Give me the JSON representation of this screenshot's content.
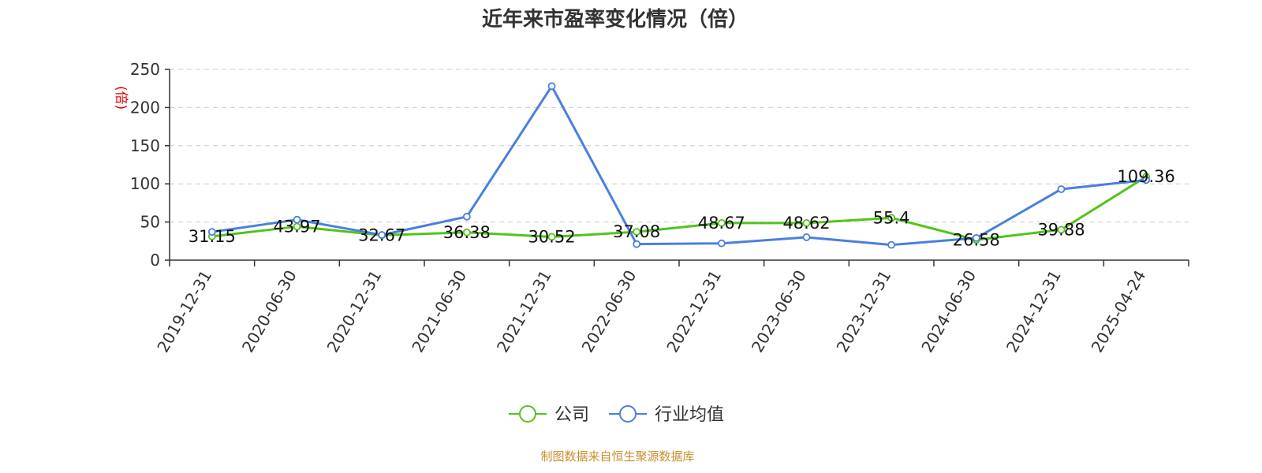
{
  "chart_data": {
    "type": "line",
    "title": "近年来市盈率变化情况（倍）",
    "ylabel": "(倍)",
    "xlabel": "",
    "categories": [
      "2019-12-31",
      "2020-06-30",
      "2020-12-31",
      "2021-06-30",
      "2021-12-31",
      "2022-06-30",
      "2022-12-31",
      "2023-06-30",
      "2023-12-31",
      "2024-06-30",
      "2024-12-31",
      "2025-04-24"
    ],
    "ylim": [
      0,
      250
    ],
    "yticks": [
      0,
      50,
      100,
      150,
      200,
      250
    ],
    "grid": true,
    "legend_position": "bottom",
    "series": [
      {
        "name": "公司",
        "color": "#52c41a",
        "values": [
          31.15,
          43.97,
          32.67,
          36.38,
          30.52,
          37.08,
          48.67,
          48.62,
          55.4,
          26.58,
          39.88,
          109.36
        ],
        "labels": [
          "31.15",
          "43.97",
          "32.67",
          "36.38",
          "30.52",
          "37.08",
          "48.67",
          "48.62",
          "55.4",
          "26.58",
          "39.88",
          "109.36"
        ]
      },
      {
        "name": "行业均值",
        "color": "#4a7fe0",
        "values": [
          37,
          53,
          33,
          57,
          228,
          21,
          22,
          30,
          20,
          29,
          93,
          105
        ]
      }
    ]
  },
  "source_text": "制图数据来自恒生聚源数据库"
}
